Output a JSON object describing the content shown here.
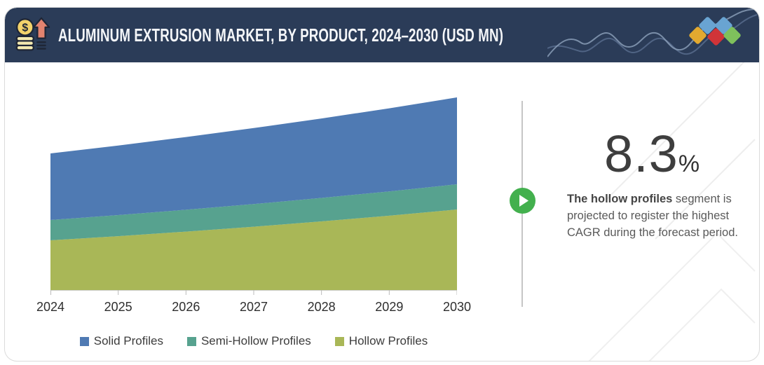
{
  "header": {
    "title": "ALUMINUM EXTRUSION MARKET, BY PRODUCT, 2024–2030 (USD MN)",
    "bg_color": "#2b3c58",
    "icon": "money-growth-icon",
    "logo_diamond_colors": [
      "#e2a92f",
      "#69a4d2",
      "#d03438",
      "#69a4d2",
      "#7fc15c"
    ]
  },
  "chart_data": {
    "type": "area",
    "stacked": true,
    "title": "Aluminum Extrusion Market, by Product, 2024–2030 (USD MN)",
    "x": [
      2024,
      2025,
      2026,
      2027,
      2028,
      2029,
      2030
    ],
    "series": [
      {
        "name": "Solid Profiles",
        "color": "#4f7ab3",
        "values": [
          95,
          99.3,
          103.8,
          108.5,
          113.4,
          118.6,
          124
        ]
      },
      {
        "name": "Semi-Hollow Profiles",
        "color": "#57a28f",
        "values": [
          29,
          30.1,
          31.2,
          32.3,
          33.5,
          34.7,
          36
        ]
      },
      {
        "name": "Hollow Profiles",
        "color": "#a9b757",
        "values": [
          71,
          76.9,
          83.4,
          90.4,
          98,
          106.1,
          115
        ]
      }
    ],
    "stack_order_bottom_to_top": [
      "Hollow Profiles",
      "Semi-Hollow Profiles",
      "Solid Profiles"
    ],
    "xlabel": "",
    "ylabel": "",
    "ylim": [
      0,
      283
    ],
    "grid": false,
    "legend_position": "bottom",
    "note": "No y-axis values are shown in the figure; series values are relative estimates read from pixel heights."
  },
  "stat": {
    "value": "8.3",
    "unit": "%"
  },
  "insight": {
    "bold": "The hollow profiles",
    "rest": " segment is projected to register the highest CAGR during the forecast period."
  },
  "axis_colors": {
    "line": "#cfcfcf",
    "tick": "#bbbbbb"
  }
}
